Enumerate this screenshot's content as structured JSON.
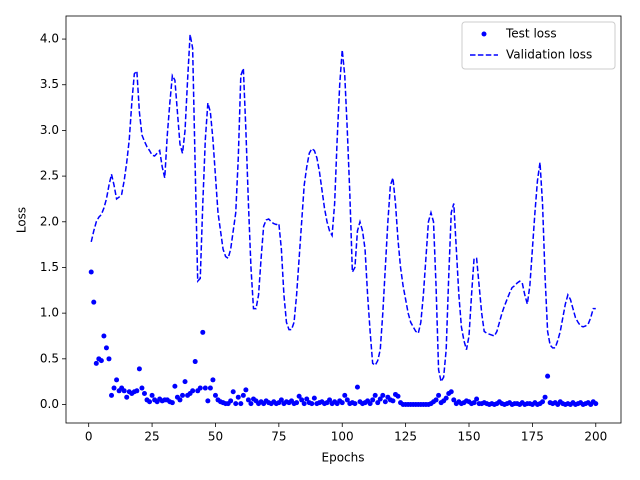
{
  "chart_data": {
    "type": "line",
    "xlabel": "Epochs",
    "ylabel": "Loss",
    "x": [
      1,
      2,
      3,
      4,
      5,
      6,
      7,
      8,
      9,
      10,
      11,
      12,
      13,
      14,
      15,
      16,
      17,
      18,
      19,
      20,
      21,
      22,
      23,
      24,
      25,
      26,
      27,
      28,
      29,
      30,
      31,
      32,
      33,
      34,
      35,
      36,
      37,
      38,
      39,
      40,
      41,
      42,
      43,
      44,
      45,
      46,
      47,
      48,
      49,
      50,
      51,
      52,
      53,
      54,
      55,
      56,
      57,
      58,
      59,
      60,
      61,
      62,
      63,
      64,
      65,
      66,
      67,
      68,
      69,
      70,
      71,
      72,
      73,
      74,
      75,
      76,
      77,
      78,
      79,
      80,
      81,
      82,
      83,
      84,
      85,
      86,
      87,
      88,
      89,
      90,
      91,
      92,
      93,
      94,
      95,
      96,
      97,
      98,
      99,
      100,
      101,
      102,
      103,
      104,
      105,
      106,
      107,
      108,
      109,
      110,
      111,
      112,
      113,
      114,
      115,
      116,
      117,
      118,
      119,
      120,
      121,
      122,
      123,
      124,
      125,
      126,
      127,
      128,
      129,
      130,
      131,
      132,
      133,
      134,
      135,
      136,
      137,
      138,
      139,
      140,
      141,
      142,
      143,
      144,
      145,
      146,
      147,
      148,
      149,
      150,
      151,
      152,
      153,
      154,
      155,
      156,
      157,
      158,
      159,
      160,
      161,
      162,
      163,
      164,
      165,
      166,
      167,
      168,
      169,
      170,
      171,
      172,
      173,
      174,
      175,
      176,
      177,
      178,
      179,
      180,
      181,
      182,
      183,
      184,
      185,
      186,
      187,
      188,
      189,
      190,
      191,
      192,
      193,
      194,
      195,
      196,
      197,
      198,
      199,
      200
    ],
    "series": [
      {
        "name": "Test loss",
        "color": "#0000ff",
        "style": "markers",
        "values": [
          1.45,
          1.12,
          0.45,
          0.5,
          0.48,
          0.75,
          0.62,
          0.5,
          0.1,
          0.18,
          0.27,
          0.15,
          0.18,
          0.15,
          0.08,
          0.14,
          0.12,
          0.14,
          0.15,
          0.39,
          0.18,
          0.12,
          0.05,
          0.03,
          0.1,
          0.05,
          0.03,
          0.06,
          0.04,
          0.05,
          0.05,
          0.03,
          0.02,
          0.2,
          0.08,
          0.05,
          0.1,
          0.25,
          0.1,
          0.12,
          0.15,
          0.47,
          0.15,
          0.18,
          0.79,
          0.18,
          0.04,
          0.18,
          0.27,
          0.1,
          0.05,
          0.03,
          0.02,
          0.01,
          0.01,
          0.04,
          0.14,
          0.01,
          0.08,
          0.01,
          0.1,
          0.16,
          0.05,
          0.01,
          0.06,
          0.04,
          0.01,
          0.03,
          0.01,
          0.04,
          0.02,
          0.01,
          0.03,
          0.01,
          0.02,
          0.05,
          0.01,
          0.03,
          0.02,
          0.04,
          0.01,
          0.02,
          0.09,
          0.05,
          0.01,
          0.06,
          0.02,
          0.01,
          0.07,
          0.01,
          0.02,
          0.03,
          0.01,
          0.02,
          0.05,
          0.01,
          0.03,
          0.01,
          0.04,
          0.02,
          0.1,
          0.05,
          0.01,
          0.02,
          0.01,
          0.19,
          0.03,
          0.01,
          0.02,
          0.04,
          0.01,
          0.05,
          0.1,
          0.02,
          0.06,
          0.1,
          0.03,
          0.08,
          0.05,
          0.04,
          0.11,
          0.09,
          0.02,
          0,
          0,
          0,
          0,
          0,
          0,
          0,
          0,
          0,
          0,
          0,
          0.01,
          0.03,
          0.05,
          0.1,
          0.02,
          0.04,
          0.07,
          0.12,
          0.14,
          0.05,
          0.01,
          0.03,
          0.01,
          0.02,
          0.04,
          0.03,
          0.01,
          0.02,
          0.06,
          0.01,
          0.01,
          0.02,
          0.01,
          0,
          0.01,
          0,
          0.01,
          0.03,
          0.01,
          0,
          0.01,
          0.02,
          0,
          0.01,
          0.01,
          0,
          0.02,
          0,
          0.01,
          0.01,
          0,
          0.02,
          0,
          0.01,
          0.03,
          0.08,
          0.31,
          0.02,
          0.01,
          0.02,
          0,
          0.03,
          0.01,
          0,
          0.01,
          0,
          0.02,
          0,
          0.01,
          0.02,
          0,
          0.01,
          0.02,
          0,
          0.03,
          0.01
        ]
      },
      {
        "name": "Validation loss",
        "color": "#0000ff",
        "style": "dashed",
        "values": [
          1.78,
          1.9,
          2.0,
          2.05,
          2.08,
          2.15,
          2.25,
          2.4,
          2.52,
          2.4,
          2.25,
          2.27,
          2.3,
          2.45,
          2.65,
          2.9,
          3.3,
          3.62,
          3.65,
          3.2,
          2.95,
          2.88,
          2.82,
          2.78,
          2.73,
          2.72,
          2.75,
          2.78,
          2.6,
          2.48,
          2.95,
          3.3,
          3.6,
          3.55,
          3.2,
          2.85,
          2.75,
          3.0,
          3.55,
          4.05,
          3.9,
          2.6,
          1.35,
          1.38,
          2.2,
          2.9,
          3.3,
          3.2,
          2.9,
          2.5,
          2.1,
          1.9,
          1.7,
          1.62,
          1.6,
          1.7,
          1.9,
          2.1,
          2.7,
          3.6,
          3.68,
          3.0,
          2.2,
          1.5,
          1.05,
          1.05,
          1.2,
          1.6,
          1.95,
          2.02,
          2.03,
          2.0,
          1.98,
          1.97,
          1.98,
          1.7,
          1.2,
          0.9,
          0.82,
          0.82,
          0.9,
          1.2,
          1.6,
          2.0,
          2.4,
          2.6,
          2.75,
          2.8,
          2.78,
          2.7,
          2.55,
          2.35,
          2.15,
          2.0,
          1.9,
          1.85,
          2.2,
          2.9,
          3.5,
          3.88,
          3.6,
          3.0,
          2.3,
          1.45,
          1.5,
          1.9,
          2.0,
          1.9,
          1.7,
          1.2,
          0.8,
          0.45,
          0.43,
          0.48,
          0.6,
          1.0,
          1.5,
          2.0,
          2.4,
          2.48,
          2.2,
          1.8,
          1.5,
          1.3,
          1.15,
          1.0,
          0.9,
          0.85,
          0.8,
          0.78,
          0.9,
          1.2,
          1.6,
          2.0,
          2.1,
          2.0,
          1.3,
          0.38,
          0.25,
          0.3,
          0.6,
          1.4,
          2.1,
          2.2,
          1.7,
          1.2,
          0.85,
          0.7,
          0.6,
          0.75,
          1.2,
          1.6,
          1.6,
          1.3,
          1.0,
          0.8,
          0.78,
          0.77,
          0.76,
          0.75,
          0.8,
          0.9,
          1.0,
          1.08,
          1.15,
          1.22,
          1.28,
          1.3,
          1.33,
          1.35,
          1.33,
          1.2,
          1.1,
          1.3,
          1.7,
          2.1,
          2.45,
          2.65,
          2.2,
          1.4,
          0.8,
          0.65,
          0.62,
          0.62,
          0.7,
          0.8,
          0.95,
          1.1,
          1.2,
          1.15,
          1.05,
          0.95,
          0.9,
          0.86,
          0.85,
          0.86,
          0.88,
          0.95,
          1.05,
          1.05
        ]
      }
    ],
    "xlim": [
      -8.95,
      209.95
    ],
    "ylim": [
      -0.2025,
      4.2525
    ],
    "xticks": [
      0,
      25,
      50,
      75,
      100,
      125,
      150,
      175,
      200
    ],
    "yticks": [
      {
        "value": 0,
        "label": "0.0"
      },
      {
        "value": 0.5,
        "label": "0.5"
      },
      {
        "value": 1,
        "label": "1.0"
      },
      {
        "value": 1.5,
        "label": "1.5"
      },
      {
        "value": 2,
        "label": "2.0"
      },
      {
        "value": 2.5,
        "label": "2.5"
      },
      {
        "value": 3,
        "label": "3.0"
      },
      {
        "value": 3.5,
        "label": "3.5"
      },
      {
        "value": 4,
        "label": "4.0"
      }
    ],
    "legend": "upper right"
  }
}
